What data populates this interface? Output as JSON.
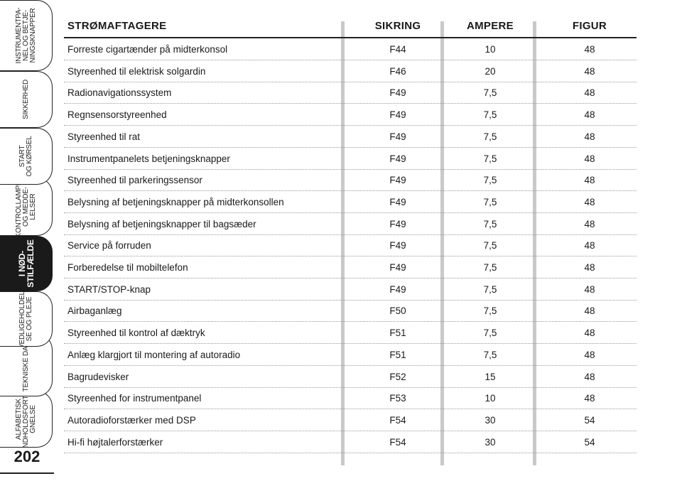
{
  "side_tabs": [
    {
      "label": "INSTRUMENTPA-\nNEL OG BETJE-\nNINGSKNAPPER",
      "active": false
    },
    {
      "label": "SIKKERHED",
      "active": false
    },
    {
      "label": "START\nOG KØRSEL",
      "active": false
    },
    {
      "label": "KONTROLLAMPER\nOG MEDDE-\nLELSER",
      "active": false
    },
    {
      "label": "I NØD-\nSTILFÆLDE",
      "active": true
    },
    {
      "label": "VEDLIGEHOLDEL-\nSE OG PLEJE",
      "active": false
    },
    {
      "label": "TEKNISKE DATA",
      "active": false
    },
    {
      "label": "ALFABETISK\nINDHOLDSFORTE-\nGNELSE",
      "active": false
    }
  ],
  "page_number": "202",
  "table": {
    "headers": {
      "name": "STRØMAFTAGERE",
      "fuse": "SIKRING",
      "ampere": "AMPERE",
      "figure": "FIGUR"
    },
    "rows": [
      {
        "name": "Forreste cigartænder på midterkonsol",
        "fuse": "F44",
        "ampere": "10",
        "figure": "48"
      },
      {
        "name": "Styreenhed til elektrisk solgardin",
        "fuse": "F46",
        "ampere": "20",
        "figure": "48"
      },
      {
        "name": "Radionavigationssystem",
        "fuse": "F49",
        "ampere": "7,5",
        "figure": "48"
      },
      {
        "name": "Regnsensorstyreenhed",
        "fuse": "F49",
        "ampere": "7,5",
        "figure": "48"
      },
      {
        "name": "Styreenhed til rat",
        "fuse": "F49",
        "ampere": "7,5",
        "figure": "48"
      },
      {
        "name": "Instrumentpanelets betjeningsknapper",
        "fuse": "F49",
        "ampere": "7,5",
        "figure": "48"
      },
      {
        "name": "Styreenhed til parkeringssensor",
        "fuse": "F49",
        "ampere": "7,5",
        "figure": "48"
      },
      {
        "name": "Belysning af betjeningsknapper på midterkonsollen",
        "fuse": "F49",
        "ampere": "7,5",
        "figure": "48"
      },
      {
        "name": "Belysning af betjeningsknapper til bagsæder",
        "fuse": "F49",
        "ampere": "7,5",
        "figure": "48"
      },
      {
        "name": "Service på forruden",
        "fuse": "F49",
        "ampere": "7,5",
        "figure": "48"
      },
      {
        "name": "Forberedelse til mobiltelefon",
        "fuse": "F49",
        "ampere": "7,5",
        "figure": "48"
      },
      {
        "name": "START/STOP-knap",
        "fuse": "F49",
        "ampere": "7,5",
        "figure": "48"
      },
      {
        "name": "Airbaganlæg",
        "fuse": "F50",
        "ampere": "7,5",
        "figure": "48"
      },
      {
        "name": "Styreenhed til kontrol af dæktryk",
        "fuse": "F51",
        "ampere": "7,5",
        "figure": "48"
      },
      {
        "name": "Anlæg klargjort til montering af autoradio",
        "fuse": "F51",
        "ampere": "7,5",
        "figure": "48"
      },
      {
        "name": "Bagrudevisker",
        "fuse": "F52",
        "ampere": "15",
        "figure": "48"
      },
      {
        "name": "Styreenhed for instrumentpanel",
        "fuse": "F53",
        "ampere": "10",
        "figure": "48"
      },
      {
        "name": "Autoradioforstærker med DSP",
        "fuse": "F54",
        "ampere": "30",
        "figure": "54"
      },
      {
        "name": "Hi-fi højtalerforstærker",
        "fuse": "F54",
        "ampere": "30",
        "figure": "54"
      }
    ]
  }
}
